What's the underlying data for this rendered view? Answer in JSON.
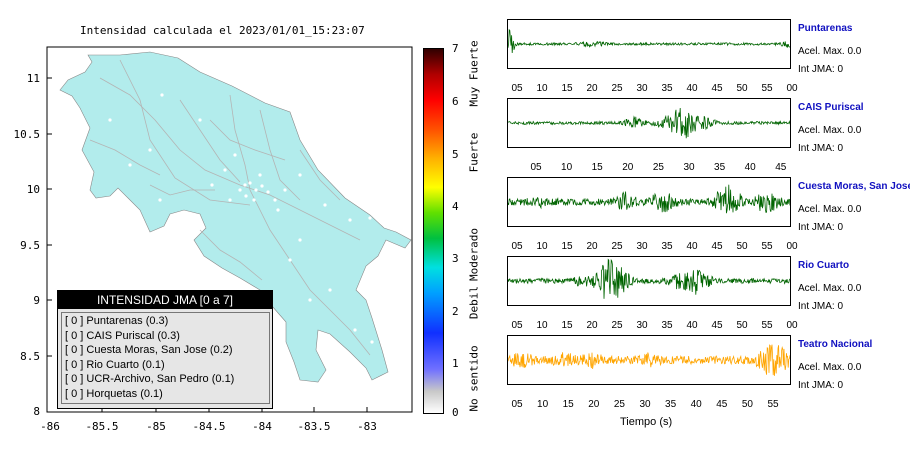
{
  "map": {
    "title": "Intensidad calculada el 2023/01/01_15:23:07",
    "lat_ticks": [
      "11",
      "10.5",
      "10",
      "9.5",
      "9",
      "8.5",
      "8"
    ],
    "lon_ticks": [
      "-86",
      "-85.5",
      "-85",
      "-84.5",
      "-84",
      "-83.5",
      "-83"
    ],
    "land_color": "#b2ecec",
    "road_color": "#b4b4b4"
  },
  "colorbar": {
    "ticks": [
      "7",
      "6",
      "5",
      "4",
      "3",
      "2",
      "1",
      "0"
    ],
    "words": [
      "Muy Fuerte",
      "Fuerte",
      "Moderado",
      "Debil",
      "No sentido"
    ]
  },
  "legend": {
    "title": "INTENSIDAD JMA [0 a 7]",
    "rows": [
      {
        "level": "[ 0 ]",
        "text": "Puntarenas (0.3)"
      },
      {
        "level": "[ 0 ]",
        "text": "CAIS Puriscal (0.3)"
      },
      {
        "level": "[ 0 ]",
        "text": "Cuesta Moras, San Jose (0.2)"
      },
      {
        "level": "[ 0 ]",
        "text": "Rio Cuarto (0.1)"
      },
      {
        "level": "[ 0 ]",
        "text": "UCR-Archivo, San Pedro (0.1)"
      },
      {
        "level": "[ 0 ]",
        "text": "Horquetas (0.1)"
      }
    ]
  },
  "traces": [
    {
      "name": "Puntarenas",
      "accel": "Acel. Max. 0.0",
      "int": "Int JMA: 0",
      "color": "#006400",
      "ticks": [
        "05",
        "10",
        "15",
        "20",
        "25",
        "30",
        "35",
        "40",
        "45",
        "50",
        "55",
        "00"
      ]
    },
    {
      "name": "CAIS Puriscal",
      "accel": "Acel. Max. 0.0",
      "int": "Int JMA: 0",
      "color": "#006400",
      "ticks": [
        "05",
        "10",
        "15",
        "20",
        "25",
        "30",
        "35",
        "40",
        "45"
      ]
    },
    {
      "name": "Cuesta Moras, San Jose",
      "accel": "Acel. Max. 0.0",
      "int": "Int JMA: 0",
      "color": "#006400",
      "ticks": [
        "05",
        "10",
        "15",
        "20",
        "25",
        "30",
        "35",
        "40",
        "45",
        "50",
        "55",
        "00"
      ]
    },
    {
      "name": "Rio Cuarto",
      "accel": "Acel. Max. 0.0",
      "int": "Int JMA: 0",
      "color": "#006400",
      "ticks": [
        "05",
        "10",
        "15",
        "20",
        "25",
        "30",
        "35",
        "40",
        "45",
        "50",
        "55",
        "00"
      ]
    },
    {
      "name": "Teatro Nacional",
      "accel": "Acel. Max. 0.0",
      "int": "Int JMA: 0",
      "color": "#ffa500",
      "ticks": [
        "05",
        "10",
        "15",
        "20",
        "25",
        "30",
        "35",
        "40",
        "45",
        "50",
        "55"
      ]
    }
  ],
  "x_axis_title": "Tiempo (s)"
}
